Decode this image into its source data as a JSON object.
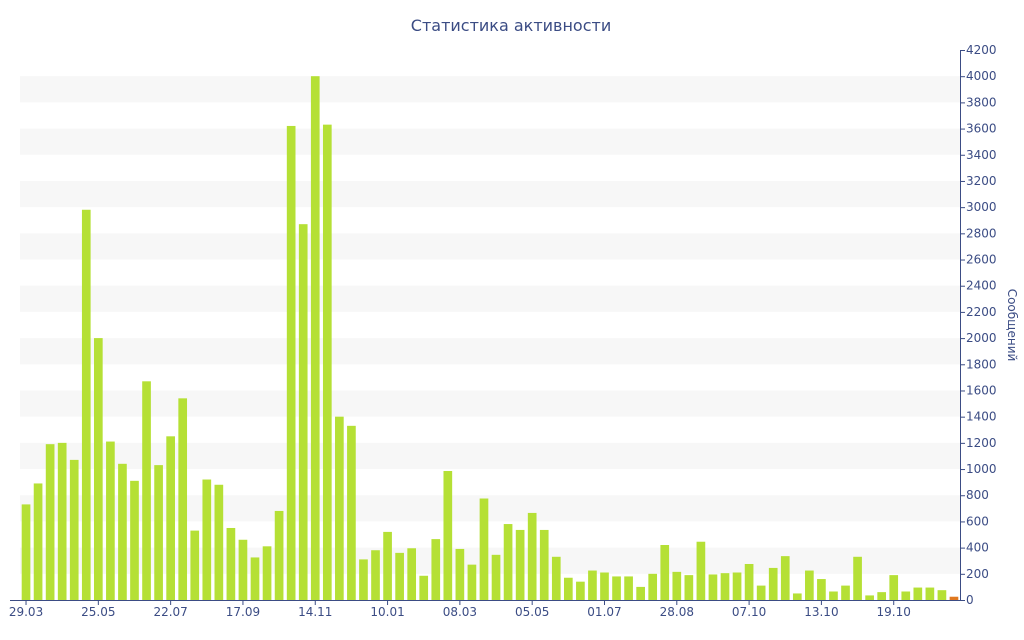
{
  "chart_data": {
    "type": "bar",
    "title": "Статистика активности",
    "ylabel": "Сообщений",
    "xlabel": "",
    "ylim": [
      0,
      4200
    ],
    "y_ticks": [
      0,
      200,
      400,
      600,
      800,
      1000,
      1200,
      1400,
      1600,
      1800,
      2000,
      2200,
      2400,
      2600,
      2800,
      3000,
      3200,
      3400,
      3600,
      3800,
      4000,
      4200
    ],
    "grid": "horizontal-bands",
    "y_axis_position": "right",
    "x_tick_labels": [
      {
        "index": 0,
        "label": "29.03"
      },
      {
        "index": 6,
        "label": "25.05"
      },
      {
        "index": 12,
        "label": "22.07"
      },
      {
        "index": 18,
        "label": "17.09"
      },
      {
        "index": 24,
        "label": "14.11"
      },
      {
        "index": 30,
        "label": "10.01"
      },
      {
        "index": 36,
        "label": "08.03"
      },
      {
        "index": 42,
        "label": "05.05"
      },
      {
        "index": 48,
        "label": "01.07"
      },
      {
        "index": 54,
        "label": "28.08"
      },
      {
        "index": 60,
        "label": "07.10"
      },
      {
        "index": 66,
        "label": "13.10"
      },
      {
        "index": 72,
        "label": "19.10"
      }
    ],
    "values": [
      730,
      890,
      1190,
      1200,
      1070,
      2980,
      2000,
      1210,
      1040,
      910,
      1670,
      1030,
      1250,
      1540,
      530,
      920,
      880,
      550,
      460,
      325,
      410,
      680,
      3620,
      2870,
      4000,
      3630,
      1400,
      1330,
      310,
      380,
      520,
      360,
      395,
      185,
      465,
      985,
      390,
      270,
      775,
      345,
      580,
      535,
      665,
      535,
      330,
      170,
      140,
      225,
      210,
      180,
      180,
      100,
      200,
      420,
      215,
      190,
      445,
      195,
      205,
      210,
      275,
      110,
      245,
      335,
      50,
      225,
      160,
      65,
      110,
      330,
      35,
      60,
      190,
      65,
      95,
      95,
      75,
      25
    ],
    "bar_color": "#b5e035",
    "last_bar_color": "#e07820",
    "band_color": "#f7f7f7",
    "axis_color": "#3b4c84"
  }
}
